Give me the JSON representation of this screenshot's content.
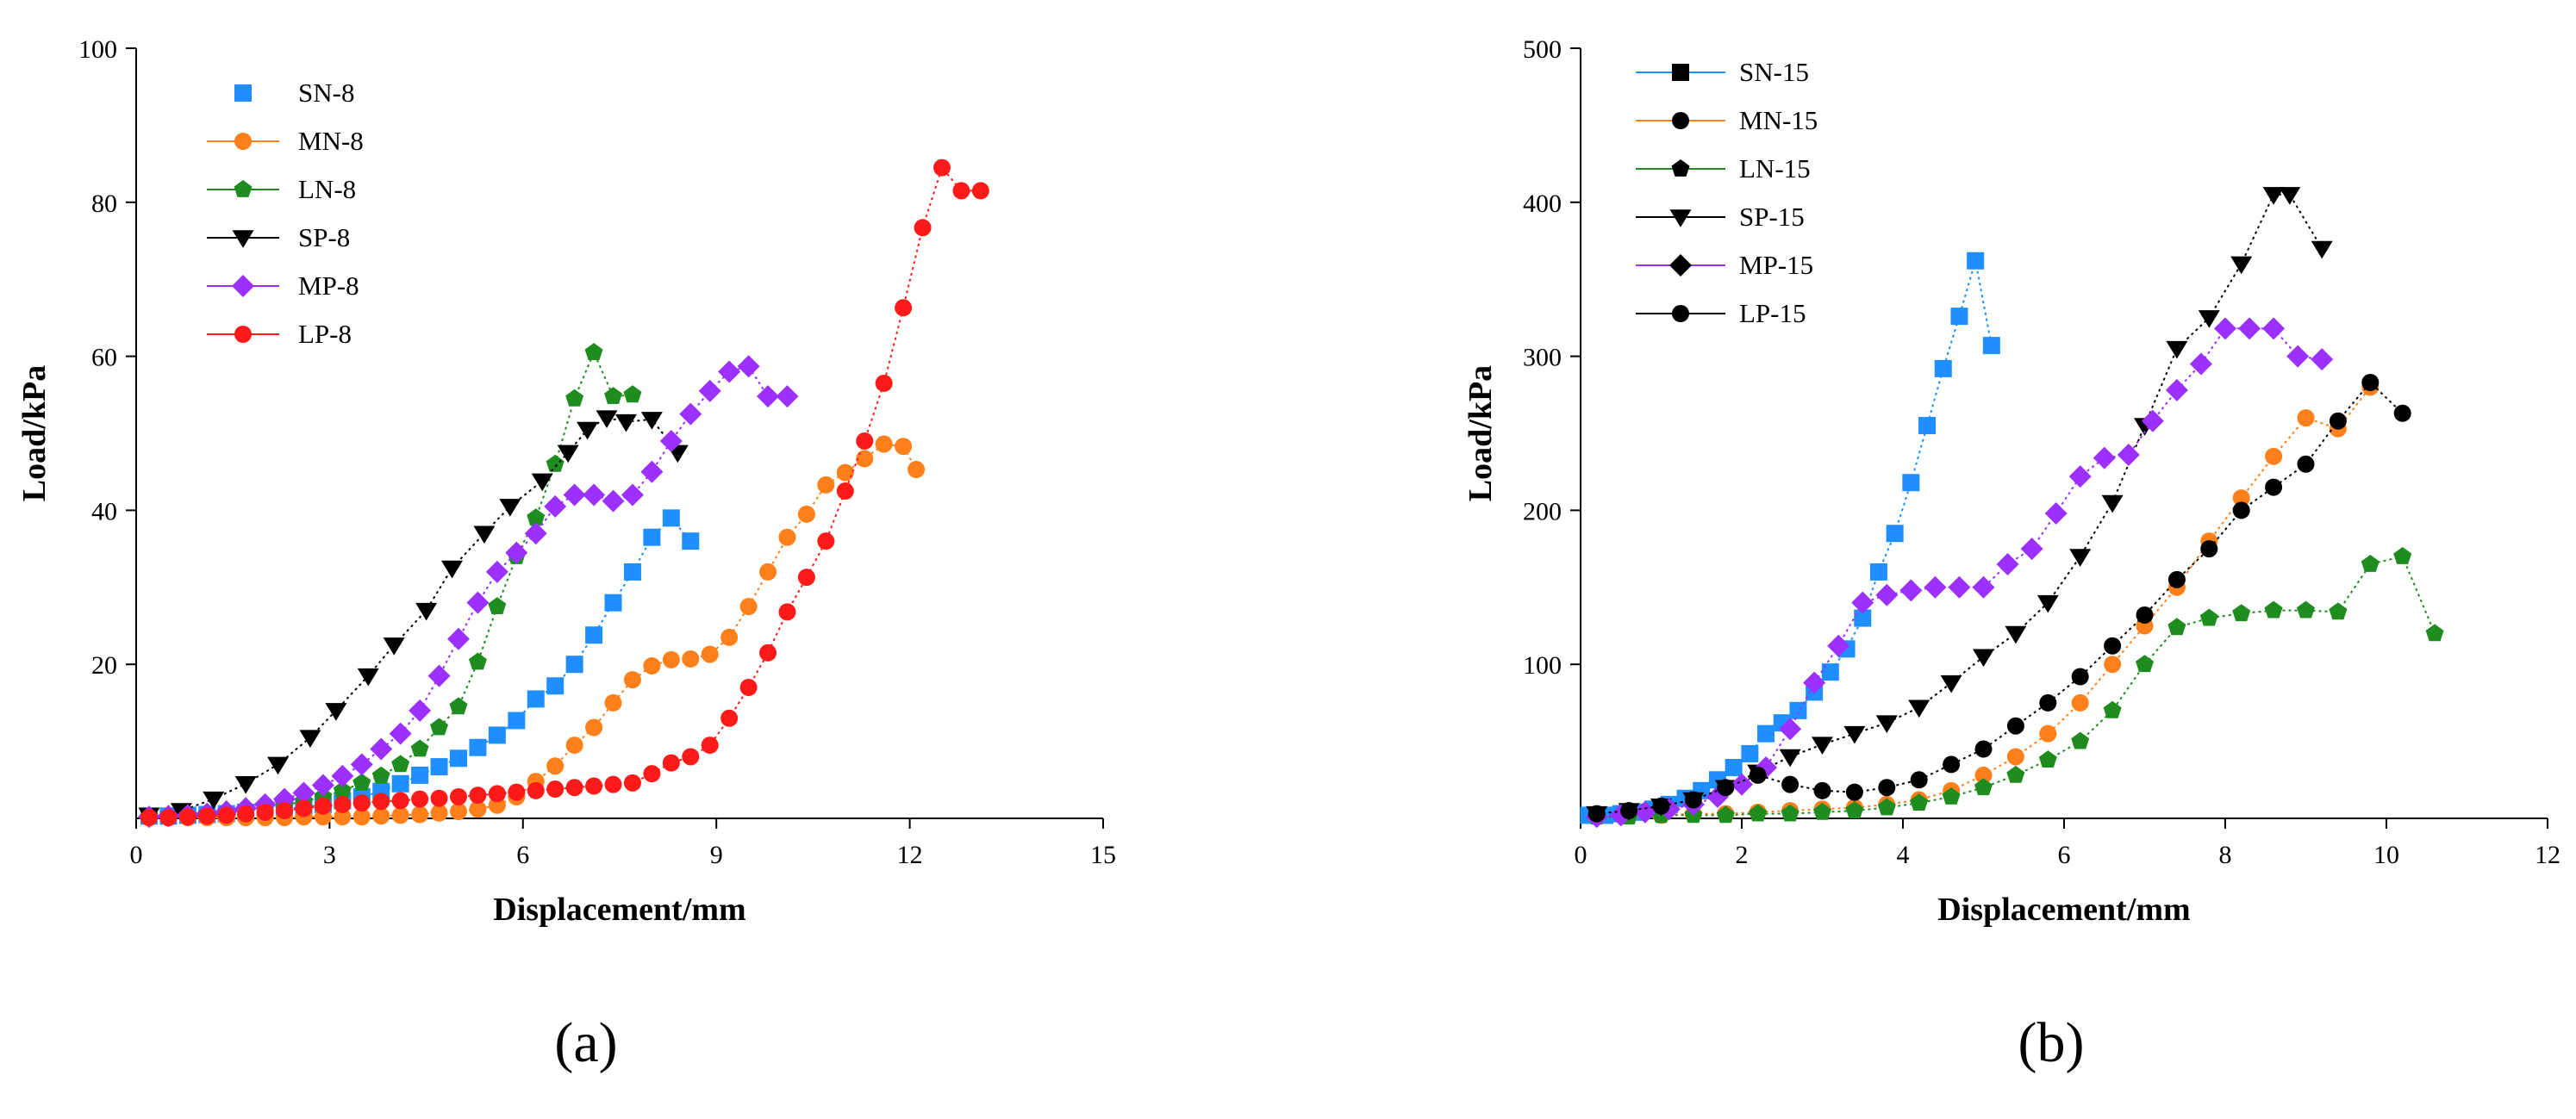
{
  "chart_data": [
    {
      "type": "scatter",
      "panel_label": "(a)",
      "xlabel": "Displacement/mm",
      "ylabel": "Load/kPa",
      "xlim": [
        0,
        15
      ],
      "ylim": [
        0,
        100
      ],
      "xticks": [
        0,
        3,
        6,
        9,
        12,
        15
      ],
      "yticks": [
        20,
        40,
        60,
        80,
        100
      ],
      "x_tick_labels": [
        "0",
        "3",
        "6",
        "9",
        "12",
        "15"
      ],
      "y_tick_labels": [
        "20",
        "40",
        "60",
        "80",
        "100"
      ],
      "legend_position": "top-left",
      "series": [
        {
          "name": "SN-8",
          "color": "#1f8fff",
          "marker": "square",
          "x": [
            0.2,
            0.5,
            0.8,
            1.1,
            1.4,
            1.7,
            2.0,
            2.3,
            2.6,
            2.9,
            3.2,
            3.5,
            3.8,
            4.1,
            4.4,
            4.7,
            5.0,
            5.3,
            5.6,
            5.9,
            6.2,
            6.5,
            6.8,
            7.1,
            7.4,
            7.7,
            8.0,
            8.3,
            8.6
          ],
          "y": [
            0.3,
            0.3,
            0.4,
            0.5,
            0.6,
            0.8,
            1.0,
            1.2,
            1.5,
            1.8,
            2.3,
            2.8,
            3.5,
            4.5,
            5.6,
            6.7,
            7.8,
            9.2,
            10.8,
            12.7,
            15.5,
            17.2,
            20.0,
            23.8,
            28.0,
            32.0,
            36.5,
            39.0,
            36.0
          ]
        },
        {
          "name": "MN-8",
          "color": "#ff7f1a",
          "marker": "circle",
          "x": [
            0.2,
            0.5,
            0.8,
            1.1,
            1.4,
            1.7,
            2.0,
            2.3,
            2.6,
            2.9,
            3.2,
            3.5,
            3.8,
            4.1,
            4.4,
            4.7,
            5.0,
            5.3,
            5.6,
            5.9,
            6.2,
            6.5,
            6.8,
            7.1,
            7.4,
            7.7,
            8.0,
            8.3,
            8.6,
            8.9,
            9.2,
            9.5,
            9.8,
            10.1,
            10.4,
            10.7,
            11.0,
            11.3,
            11.6,
            11.9,
            12.1
          ],
          "y": [
            0.1,
            0.1,
            0.1,
            0.1,
            0.1,
            0.1,
            0.1,
            0.1,
            0.2,
            0.2,
            0.2,
            0.2,
            0.3,
            0.4,
            0.5,
            0.7,
            0.9,
            1.2,
            1.7,
            2.8,
            4.8,
            6.8,
            9.5,
            11.8,
            15.0,
            18.0,
            19.8,
            20.6,
            20.7,
            21.3,
            23.5,
            27.5,
            32.0,
            36.5,
            39.5,
            43.3,
            44.9,
            46.7,
            48.6,
            48.3,
            45.3
          ]
        },
        {
          "name": "LN-8",
          "color": "#1e8c1e",
          "marker": "pentagon",
          "x": [
            0.2,
            0.5,
            0.8,
            1.1,
            1.4,
            1.7,
            2.0,
            2.3,
            2.6,
            2.9,
            3.2,
            3.5,
            3.8,
            4.1,
            4.4,
            4.7,
            5.0,
            5.3,
            5.6,
            5.9,
            6.2,
            6.5,
            6.8,
            7.1,
            7.4,
            7.7
          ],
          "y": [
            0.2,
            0.3,
            0.4,
            0.6,
            0.8,
            1.0,
            1.3,
            1.7,
            2.2,
            2.8,
            3.6,
            4.6,
            5.5,
            7.0,
            9.0,
            11.8,
            14.5,
            20.3,
            27.5,
            34.0,
            39.0,
            46.0,
            54.5,
            60.5,
            54.8,
            55.0
          ]
        },
        {
          "name": "SP-8",
          "color": "#000000",
          "marker": "triangle-down",
          "x": [
            0.2,
            0.7,
            1.2,
            1.7,
            2.2,
            2.7,
            3.1,
            3.6,
            4.0,
            4.5,
            4.9,
            5.4,
            5.8,
            6.3,
            6.7,
            7.0,
            7.3,
            7.6,
            8.0,
            8.4
          ],
          "y": [
            0.4,
            1.0,
            2.5,
            4.5,
            7.0,
            10.5,
            14.0,
            18.5,
            22.5,
            27.0,
            32.5,
            37.0,
            40.5,
            43.8,
            47.5,
            50.5,
            52.0,
            51.5,
            51.8,
            47.5
          ],
          "x_extra": [
            8.5
          ],
          "y_extra": [
            45.0
          ]
        },
        {
          "name": "MP-8",
          "color": "#9b30ff",
          "marker": "diamond",
          "x": [
            0.2,
            0.5,
            0.8,
            1.1,
            1.4,
            1.7,
            2.0,
            2.3,
            2.6,
            2.9,
            3.2,
            3.5,
            3.8,
            4.1,
            4.4,
            4.7,
            5.0,
            5.3,
            5.6,
            5.9,
            6.2,
            6.5,
            6.8,
            7.1,
            7.4,
            7.7,
            8.0,
            8.3,
            8.6,
            8.9,
            9.2,
            9.5,
            9.8,
            10.1
          ],
          "y": [
            0.2,
            0.3,
            0.4,
            0.6,
            0.9,
            1.3,
            1.8,
            2.5,
            3.3,
            4.3,
            5.5,
            7.0,
            9.0,
            11.0,
            14.0,
            18.5,
            23.3,
            28.0,
            32.0,
            34.5,
            37.0,
            40.5,
            42.0,
            42.0,
            41.2,
            42.0,
            45.0,
            49.0,
            52.5,
            55.5,
            58.0,
            58.7,
            54.8,
            54.8
          ]
        },
        {
          "name": "LP-8",
          "color": "#ff1a1a",
          "marker": "circle",
          "x": [
            0.2,
            0.5,
            0.8,
            1.1,
            1.4,
            1.7,
            2.0,
            2.3,
            2.6,
            2.9,
            3.2,
            3.5,
            3.8,
            4.1,
            4.4,
            4.7,
            5.0,
            5.3,
            5.6,
            5.9,
            6.2,
            6.5,
            6.8,
            7.1,
            7.4,
            7.7,
            8.0,
            8.3,
            8.6,
            8.9,
            9.2,
            9.5,
            9.8,
            10.1,
            10.4,
            10.7,
            11.0,
            11.3,
            11.6,
            11.9,
            12.2,
            12.5,
            12.8,
            13.1
          ],
          "y": [
            0.1,
            0.1,
            0.2,
            0.3,
            0.4,
            0.6,
            0.8,
            1.0,
            1.3,
            1.6,
            1.8,
            2.0,
            2.2,
            2.3,
            2.5,
            2.6,
            2.8,
            3.0,
            3.2,
            3.4,
            3.6,
            3.8,
            4.0,
            4.2,
            4.4,
            4.6,
            5.8,
            7.2,
            8.0,
            9.5,
            13.0,
            17.0,
            21.5,
            26.8,
            31.3,
            36.0,
            42.5,
            49.0,
            56.5,
            66.3,
            76.7,
            84.5,
            81.5,
            81.5
          ]
        }
      ]
    },
    {
      "type": "line",
      "panel_label": "(b)",
      "xlabel": "Displacement/mm",
      "ylabel": "Load/kPa",
      "xlim": [
        0,
        12
      ],
      "ylim": [
        0,
        500
      ],
      "xticks": [
        0,
        2,
        4,
        6,
        8,
        10,
        12
      ],
      "yticks": [
        100,
        200,
        300,
        400,
        500
      ],
      "x_tick_labels": [
        "0",
        "2",
        "4",
        "6",
        "8",
        "10",
        "12"
      ],
      "y_tick_labels": [
        "100",
        "200",
        "300",
        "400",
        "500"
      ],
      "legend_position": "top-left",
      "series": [
        {
          "name": "SN-15",
          "color": "#1f8fff",
          "marker": "square",
          "x": [
            0.1,
            0.3,
            0.5,
            0.7,
            0.9,
            1.1,
            1.3,
            1.5,
            1.7,
            1.9,
            2.1,
            2.3,
            2.5,
            2.7,
            2.9,
            3.1,
            3.3,
            3.5,
            3.7,
            3.9,
            4.1,
            4.3,
            4.5,
            4.7,
            4.9,
            5.1
          ],
          "y": [
            2,
            2,
            3,
            4,
            6,
            9,
            13,
            18,
            25,
            33,
            42,
            55,
            62,
            70,
            82,
            95,
            110,
            130,
            160,
            185,
            218,
            255,
            292,
            326,
            362,
            307
          ]
        },
        {
          "name": "MN-15",
          "color": "#ff7f1a",
          "marker": "circle",
          "x": [
            0.2,
            0.6,
            1.0,
            1.4,
            1.8,
            2.2,
            2.6,
            3.0,
            3.4,
            3.8,
            4.2,
            4.6,
            5.0,
            5.4,
            5.8,
            6.2,
            6.6,
            7.0,
            7.4,
            7.8,
            8.2,
            8.6,
            9.0,
            9.4,
            9.8
          ],
          "y": [
            1,
            2,
            2,
            3,
            3,
            4,
            5,
            6,
            7,
            9,
            12,
            18,
            28,
            40,
            55,
            75,
            100,
            125,
            150,
            180,
            208,
            235,
            260,
            253,
            280
          ]
        },
        {
          "name": "LN-15",
          "color": "#1e8c1e",
          "marker": "pentagon",
          "x": [
            0.2,
            0.6,
            1.0,
            1.4,
            1.8,
            2.2,
            2.6,
            3.0,
            3.4,
            3.8,
            4.2,
            4.6,
            5.0,
            5.4,
            5.8,
            6.2,
            6.6,
            7.0,
            7.4,
            7.8,
            8.2,
            8.6,
            9.0,
            9.4,
            9.8,
            10.2,
            10.6
          ],
          "y": [
            1,
            1,
            2,
            2,
            2,
            3,
            3,
            4,
            5,
            7,
            10,
            14,
            20,
            28,
            38,
            50,
            70,
            100,
            124,
            130,
            133,
            135,
            135,
            134,
            165,
            170,
            120
          ]
        },
        {
          "name": "SP-15",
          "color": "#000000",
          "marker": "triangle-down",
          "x": [
            0.2,
            0.6,
            1.0,
            1.4,
            1.8,
            2.2,
            2.6,
            3.0,
            3.4,
            3.8,
            4.2,
            4.6,
            5.0,
            5.4,
            5.8,
            6.2,
            6.6,
            7.0,
            7.4,
            7.8,
            8.2,
            8.6,
            8.8,
            9.2
          ],
          "y": [
            3,
            5,
            8,
            12,
            20,
            30,
            40,
            48,
            55,
            62,
            72,
            88,
            105,
            120,
            140,
            170,
            205,
            255,
            305,
            325,
            360,
            405,
            405,
            370
          ]
        },
        {
          "name": "MP-15",
          "color": "#9b30ff",
          "marker": "diamond",
          "x": [
            0.2,
            0.5,
            0.8,
            1.1,
            1.4,
            1.7,
            2.0,
            2.3,
            2.6,
            2.9,
            3.2,
            3.5,
            3.8,
            4.1,
            4.4,
            4.7,
            5.0,
            5.3,
            5.6,
            5.9,
            6.2,
            6.5,
            6.8,
            7.1,
            7.4,
            7.7,
            8.0,
            8.3,
            8.6,
            8.9,
            9.2
          ],
          "y": [
            1,
            2,
            4,
            6,
            9,
            14,
            22,
            33,
            58,
            88,
            112,
            140,
            145,
            148,
            150,
            150,
            150,
            165,
            175,
            198,
            222,
            234,
            236,
            258,
            278,
            295,
            318,
            318,
            318,
            300,
            298
          ]
        },
        {
          "name": "LP-15",
          "color": "#000000",
          "marker": "circle",
          "x": [
            0.2,
            0.6,
            1.0,
            1.4,
            1.8,
            2.2,
            2.6,
            3.0,
            3.4,
            3.8,
            4.2,
            4.6,
            5.0,
            5.4,
            5.8,
            6.2,
            6.6,
            7.0,
            7.4,
            7.8,
            8.2,
            8.6,
            9.0,
            9.4,
            9.8,
            10.2
          ],
          "y": [
            3,
            5,
            8,
            12,
            20,
            28,
            22,
            18,
            17,
            20,
            25,
            35,
            45,
            60,
            75,
            92,
            112,
            132,
            155,
            175,
            200,
            215,
            230,
            258,
            283,
            263
          ]
        }
      ]
    }
  ]
}
